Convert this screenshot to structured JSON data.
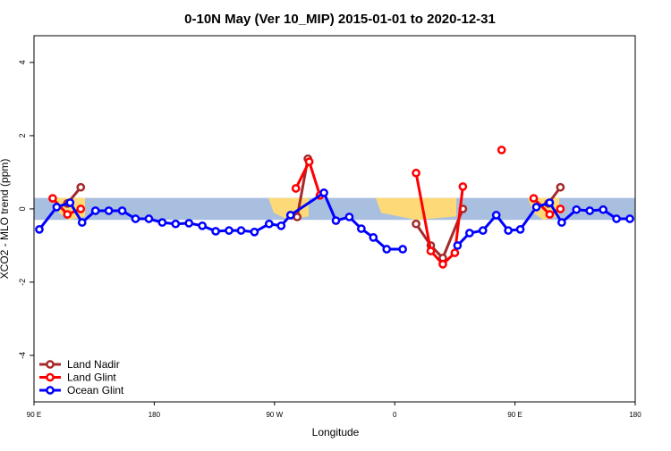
{
  "chart_data": {
    "type": "line",
    "title": "0-10N May (Ver 10_MIP)   2015-01-01 to 2020-12-31",
    "x_label": "Longitude",
    "y_label": "XCO2 - MLO trend (ppm)",
    "xlim": [
      90,
      540
    ],
    "xticks": [
      {
        "value": 90,
        "label": "90 E"
      },
      180,
      {
        "value": 270,
        "label": "90 W"
      },
      {
        "value": 360,
        "label": "0"
      },
      {
        "value": 450,
        "label": "90 E"
      },
      {
        "value": 540,
        "label": "180"
      }
    ],
    "ylim": [
      -5.27,
      4.73
    ],
    "yticks": [
      -4,
      -2,
      0,
      2,
      4
    ],
    "band_ylim": [
      -0.3,
      0.3
    ],
    "band_color": "#a8bfdf",
    "land_color": "#fdd978",
    "legend": "bottom-left",
    "series": [
      {
        "name": "Land Nadir",
        "color": "#a52a2a",
        "x": [
          115,
          125,
          null,
          287,
          295,
          null,
          376,
          387,
          396,
          411,
          null,
          475,
          484
        ],
        "values": [
          0.15,
          0.59,
          null,
          -0.22,
          1.37,
          null,
          -0.41,
          -1.0,
          -1.34,
          0,
          null,
          0.15,
          0.59
        ]
      },
      {
        "name": "Land Glint",
        "color": "#ff0000",
        "x": [
          104,
          115,
          125,
          null,
          286,
          296,
          304,
          null,
          376,
          387,
          396,
          405,
          411,
          null,
          440,
          null,
          464,
          476,
          484
        ],
        "values": [
          0.29,
          -0.15,
          0,
          null,
          0.56,
          1.29,
          0.37,
          null,
          0.98,
          -1.15,
          -1.51,
          -1.2,
          0.61,
          null,
          1.61,
          null,
          0.29,
          -0.15,
          0
        ]
      },
      {
        "name": "Ocean Glint",
        "color": "#0000ff",
        "x": [
          94,
          107,
          117,
          126,
          136,
          146,
          156,
          166,
          176,
          186,
          196,
          206,
          216,
          226,
          236,
          245,
          255,
          266,
          275,
          282,
          307,
          316,
          326,
          335,
          344,
          354,
          366,
          null,
          407,
          416,
          426,
          436,
          445,
          454,
          466,
          476,
          485,
          496,
          506,
          516,
          526,
          536
        ],
        "values": [
          -0.56,
          0.05,
          0.17,
          -0.37,
          -0.05,
          -0.05,
          -0.05,
          -0.27,
          -0.27,
          -0.37,
          -0.41,
          -0.39,
          -0.46,
          -0.61,
          -0.59,
          -0.59,
          -0.63,
          -0.41,
          -0.46,
          -0.17,
          0.44,
          -0.32,
          -0.22,
          -0.54,
          -0.78,
          -1.1,
          -1.1,
          null,
          -1.0,
          -0.66,
          -0.59,
          -0.17,
          -0.59,
          -0.56,
          0.05,
          0.17,
          -0.37,
          -0.02,
          -0.05,
          -0.02,
          -0.27,
          -0.27
        ]
      }
    ]
  }
}
